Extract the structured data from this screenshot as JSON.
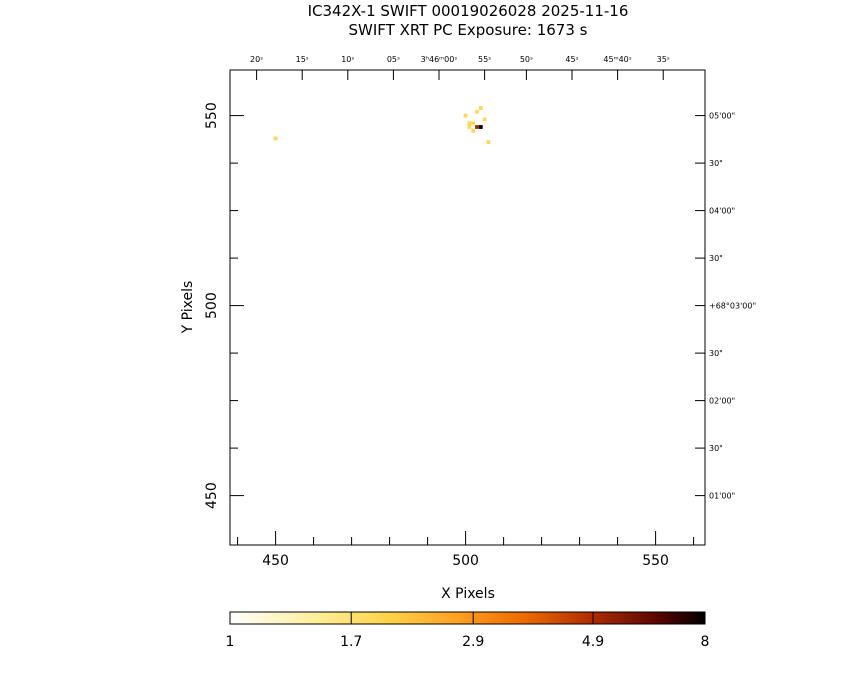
{
  "header": {
    "title": "IC342X-1 SWIFT 00019026028 2025-11-16",
    "subtitle": "SWIFT XRT PC Exposure:       1673 s"
  },
  "chart_data": {
    "type": "heatmap",
    "title": "IC342X-1 SWIFT 00019026028 2025-11-16",
    "subtitle": "SWIFT XRT PC Exposure:       1673 s",
    "xlabel": "X Pixels",
    "ylabel": "Y Pixels",
    "xlim": [
      438,
      563
    ],
    "ylim": [
      437,
      562
    ],
    "x_ticks_major": [
      450,
      500,
      550
    ],
    "x_ticks_minor": [
      440,
      460,
      470,
      480,
      490,
      510,
      520,
      530,
      540,
      560
    ],
    "y_ticks_major": [
      450,
      500,
      550
    ],
    "y_ticks_minor": [
      462.5,
      475,
      487.5,
      512.5,
      525,
      537.5
    ],
    "top_ra_labels": [
      {
        "x": 445,
        "label": "20ˢ"
      },
      {
        "x": 457,
        "label": "15ˢ"
      },
      {
        "x": 469,
        "label": "10ˢ"
      },
      {
        "x": 481,
        "label": "05ˢ"
      },
      {
        "x": 493,
        "label": "3ʰ46ᵐ00ˢ"
      },
      {
        "x": 505,
        "label": "55ˢ"
      },
      {
        "x": 516,
        "label": "50ˢ"
      },
      {
        "x": 528,
        "label": "45ˢ"
      },
      {
        "x": 540,
        "label": "45ᵐ40ˢ"
      },
      {
        "x": 552,
        "label": "35ˢ"
      }
    ],
    "right_dec_labels": [
      {
        "y": 550,
        "label": "05'00\""
      },
      {
        "y": 537.5,
        "label": "30\""
      },
      {
        "y": 525,
        "label": "04'00\""
      },
      {
        "y": 512.5,
        "label": "30\""
      },
      {
        "y": 500,
        "label": "+68°03'00\""
      },
      {
        "y": 487.5,
        "label": "30\""
      },
      {
        "y": 475,
        "label": "02'00\""
      },
      {
        "y": 462.5,
        "label": "30\""
      },
      {
        "y": 450,
        "label": "01'00\""
      }
    ],
    "pixels": [
      {
        "x": 450,
        "y": 544,
        "v": 1.7
      },
      {
        "x": 500,
        "y": 550,
        "v": 1.7
      },
      {
        "x": 501,
        "y": 548,
        "v": 1.7
      },
      {
        "x": 502,
        "y": 548,
        "v": 1.7
      },
      {
        "x": 501,
        "y": 547,
        "v": 1.7
      },
      {
        "x": 502,
        "y": 546,
        "v": 1.7
      },
      {
        "x": 503,
        "y": 551,
        "v": 1.7
      },
      {
        "x": 504,
        "y": 552,
        "v": 1.7
      },
      {
        "x": 505,
        "y": 549,
        "v": 1.7
      },
      {
        "x": 503,
        "y": 547,
        "v": 4.9
      },
      {
        "x": 504,
        "y": 547,
        "v": 8
      },
      {
        "x": 506,
        "y": 543,
        "v": 1.7
      }
    ],
    "colorbar": {
      "min": 1,
      "max": 8,
      "tick_values": [
        1,
        1.7,
        2.9,
        4.9,
        8
      ],
      "tick_labels": [
        "1",
        "1.7",
        "2.9",
        "4.9",
        "8"
      ]
    }
  }
}
